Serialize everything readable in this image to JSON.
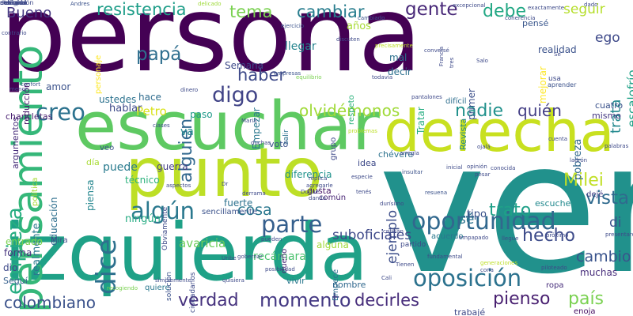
{
  "words": [
    {
      "text": "persona",
      "color": "#440154",
      "orient": "h"
    },
    {
      "text": "ver",
      "color": "#21918c",
      "orient": "h"
    },
    {
      "text": "izquierda",
      "color": "#1fa187",
      "orient": "h"
    },
    {
      "text": "escuchar",
      "color": "#5ec962",
      "orient": "h"
    },
    {
      "text": "punto",
      "color": "#bddf26",
      "orient": "h"
    },
    {
      "text": "derecha",
      "color": "#c8e020",
      "orient": "h"
    },
    {
      "text": "pensamiento",
      "color": "#35b779",
      "orient": "v"
    },
    {
      "text": "oportunidad",
      "color": "#31688e",
      "orient": "h"
    },
    {
      "text": "oposición",
      "color": "#2c728e",
      "orient": "h"
    },
    {
      "text": "momento",
      "color": "#443983",
      "orient": "h"
    },
    {
      "text": "algún",
      "color": "#2a788e",
      "orient": "h"
    },
    {
      "text": "parte",
      "color": "#355f8d",
      "orient": "h"
    },
    {
      "text": "creo",
      "color": "#2c728e",
      "orient": "h"
    },
    {
      "text": "digo",
      "color": "#414487",
      "orient": "h"
    },
    {
      "text": "colombiano",
      "color": "#3b528b",
      "orient": "h"
    },
    {
      "text": "verdad",
      "color": "#46327e",
      "orient": "h"
    },
    {
      "text": "decirles",
      "color": "#472d7b",
      "orient": "h"
    },
    {
      "text": "pienso",
      "color": "#481f70",
      "orient": "h"
    },
    {
      "text": "país",
      "color": "#7ad151",
      "orient": "h"
    },
    {
      "text": "dice",
      "color": "#2d708e",
      "orient": "v"
    },
    {
      "text": "empieza",
      "color": "#26ad81",
      "orient": "v"
    },
    {
      "text": "resistencia",
      "color": "#1f9e89",
      "orient": "h"
    },
    {
      "text": "tema",
      "color": "#7ad151",
      "orient": "h"
    },
    {
      "text": "cambiar",
      "color": "#287d8e",
      "orient": "h"
    },
    {
      "text": "gente",
      "color": "#482878",
      "orient": "h"
    },
    {
      "text": "debe",
      "color": "#22a884",
      "orient": "h"
    },
    {
      "text": "papá",
      "color": "#2e6e8e",
      "orient": "h"
    },
    {
      "text": "alguien",
      "color": "#31688e",
      "orient": "v"
    },
    {
      "text": "haber",
      "color": "#3e4a89",
      "orient": "h"
    },
    {
      "text": "nadie",
      "color": "#21918c",
      "orient": "h"
    },
    {
      "text": "olvidémonos",
      "color": "#a0da39",
      "orient": "h"
    },
    {
      "text": "quién",
      "color": "#433e85",
      "orient": "h"
    },
    {
      "text": "vista",
      "color": "#306a8e",
      "orient": "h"
    },
    {
      "text": "Milei",
      "color": "#c0df25",
      "orient": "h"
    },
    {
      "text": "trato",
      "color": "#1fa088",
      "orient": "h"
    },
    {
      "text": "hecho",
      "color": "#3e4c8a",
      "orient": "h"
    },
    {
      "text": "cambio",
      "color": "#3a548c",
      "orient": "h"
    },
    {
      "text": "cosa",
      "color": "#2a778e",
      "orient": "h"
    },
    {
      "text": "ejemplo",
      "color": "#3d4e8a",
      "orient": "v"
    },
    {
      "text": "Bueno",
      "color": "#453781",
      "orient": "h"
    },
    {
      "text": "seguir",
      "color": "#b5de2b",
      "orient": "h"
    },
    {
      "text": "ego",
      "color": "#3e4989",
      "orient": "h"
    },
    {
      "text": "trata",
      "color": "#23898e",
      "orient": "v"
    },
    {
      "text": "escalofrío",
      "color": "#1fa187",
      "orient": "v"
    },
    {
      "text": "Petro",
      "color": "#d8e219",
      "orient": "h"
    },
    {
      "text": "va",
      "color": "#23898e",
      "orient": "h"
    },
    {
      "text": "puede",
      "color": "#297b8e",
      "orient": "h"
    },
    {
      "text": "sé",
      "color": "#2c738e",
      "orient": "h"
    },
    {
      "text": "di",
      "color": "#3b518b",
      "orient": "h"
    },
    {
      "text": "suboficiales",
      "color": "#3e4989",
      "orient": "h"
    },
    {
      "text": "avaricia",
      "color": "#6ccd5a",
      "orient": "h"
    },
    {
      "text": "recámara",
      "color": "#4ac16d",
      "orient": "h"
    },
    {
      "text": "realmente",
      "color": "#2a788e",
      "orient": "v"
    },
    {
      "text": "educación",
      "color": "#2e6f8e",
      "orient": "v"
    },
    {
      "text": "argumentos",
      "color": "#472c7a",
      "orient": "v"
    },
    {
      "text": "reducción",
      "color": "#48186a",
      "orient": "v"
    },
    {
      "text": "personaje",
      "color": "#fde725",
      "orient": "v"
    },
    {
      "text": "Semana",
      "color": "#3e4a89",
      "orient": "h"
    },
    {
      "text": "llegar",
      "color": "#25858e",
      "orient": "h"
    },
    {
      "text": "años",
      "color": "#a8db34",
      "orient": "h"
    },
    {
      "text": "mal",
      "color": "#2c718e",
      "orient": "h"
    },
    {
      "text": "decir",
      "color": "#2d708e",
      "orient": "h"
    },
    {
      "text": "respeto",
      "color": "#2db27d",
      "orient": "v"
    },
    {
      "text": "Tratar",
      "color": "#26ad81",
      "orient": "v"
    },
    {
      "text": "Revista",
      "color": "#24868e",
      "orient": "v"
    },
    {
      "text": "primer",
      "color": "#3c508b",
      "orient": "v"
    },
    {
      "text": "mejorar",
      "color": "#fde725",
      "orient": "v"
    },
    {
      "text": "realidad",
      "color": "#3b528b",
      "orient": "h"
    },
    {
      "text": "hace",
      "color": "#2f6c8e",
      "orient": "h"
    },
    {
      "text": "ustedes",
      "color": "#2c728e",
      "orient": "h"
    },
    {
      "text": "hablar",
      "color": "#3e4a89",
      "orient": "h"
    },
    {
      "text": "paso",
      "color": "#1f9a8a",
      "orient": "h"
    },
    {
      "text": "cuatro",
      "color": "#3b528b",
      "orient": "h"
    },
    {
      "text": "mismo",
      "color": "#453882",
      "orient": "h"
    },
    {
      "text": "difícil",
      "color": "#2e6e8e",
      "orient": "h"
    },
    {
      "text": "guerra",
      "color": "#433e85",
      "orient": "h"
    },
    {
      "text": "diferencia",
      "color": "#20928c",
      "orient": "h"
    },
    {
      "text": "chévere",
      "color": "#2c728e",
      "orient": "h"
    },
    {
      "text": "idea",
      "color": "#3e4a89",
      "orient": "h"
    },
    {
      "text": "tipo",
      "color": "#3b528b",
      "orient": "h"
    },
    {
      "text": "pobreza",
      "color": "#31688e",
      "orient": "v"
    },
    {
      "text": "dejé",
      "color": "#433e85",
      "orient": "h"
    },
    {
      "text": "escuche",
      "color": "#23898e",
      "orient": "h"
    },
    {
      "text": "veo",
      "color": "#3b528b",
      "orient": "h"
    },
    {
      "text": "técnico",
      "color": "#2db27d",
      "orient": "h"
    },
    {
      "text": "gusta",
      "color": "#481769",
      "orient": "h"
    },
    {
      "text": "común",
      "color": "#482575",
      "orient": "h"
    },
    {
      "text": "Mira",
      "color": "#3f4788",
      "orient": "h"
    },
    {
      "text": "Obviamente",
      "color": "#3e4a89",
      "orient": "v"
    },
    {
      "text": "sencillamente",
      "color": "#3b528b",
      "orient": "h"
    },
    {
      "text": "fuerte",
      "color": "#2c718e",
      "orient": "h"
    },
    {
      "text": "ningún",
      "color": "#25ab82",
      "orient": "h"
    },
    {
      "text": "alguna",
      "color": "#a0da39",
      "orient": "h"
    },
    {
      "text": "acuerdo",
      "color": "#2a788e",
      "orient": "h"
    },
    {
      "text": "ropa",
      "color": "#472d7b",
      "orient": "h"
    },
    {
      "text": "muchas",
      "color": "#472d7b",
      "orient": "h"
    },
    {
      "text": "entrado",
      "color": "#7ad151",
      "orient": "h"
    },
    {
      "text": "forma",
      "color": "#46327e",
      "orient": "h"
    },
    {
      "text": "dio",
      "color": "#3e4989",
      "orient": "h"
    },
    {
      "text": "Seguí",
      "color": "#355f8d",
      "orient": "h"
    },
    {
      "text": "quiere",
      "color": "#2a788e",
      "orient": "h"
    },
    {
      "text": "solución",
      "color": "#3b528b",
      "orient": "v"
    },
    {
      "text": "ciudadanos",
      "color": "#3e4a89",
      "orient": "v"
    },
    {
      "text": "dueño",
      "color": "#482475",
      "orient": "v"
    },
    {
      "text": "Empecé",
      "color": "#2e6e8e",
      "orient": "v"
    },
    {
      "text": "nombre",
      "color": "#31688e",
      "orient": "h"
    },
    {
      "text": "vivir",
      "color": "#2a788e",
      "orient": "h"
    },
    {
      "text": "trabajé",
      "color": "#3e4989",
      "orient": "h"
    },
    {
      "text": "enoja",
      "color": "#471063",
      "orient": "h"
    },
    {
      "text": "chancletas",
      "color": "#481f70",
      "orient": "h"
    },
    {
      "text": "amor",
      "color": "#3b528b",
      "orient": "h"
    },
    {
      "text": "salir",
      "color": "#2c728e",
      "orient": "v"
    },
    {
      "text": "grupo",
      "color": "#3e4989",
      "orient": "v"
    },
    {
      "text": "votó",
      "color": "#3b528b",
      "orient": "h"
    },
    {
      "text": "día",
      "color": "#a8db34",
      "orient": "h"
    },
    {
      "text": "política",
      "color": "#a8db34",
      "orient": "v"
    },
    {
      "text": "piensa",
      "color": "#24868e",
      "orient": "v"
    },
    {
      "text": "Empezar",
      "color": "#2a788e",
      "orient": "v"
    },
    {
      "text": "pensé",
      "color": "#39568c",
      "orient": "h"
    },
    {
      "text": "usa",
      "color": "#3e4a89",
      "orient": "h"
    },
    {
      "text": "aprender",
      "color": "#3b528b",
      "orient": "h"
    },
    {
      "text": "partido",
      "color": "#3e4a89",
      "orient": "h"
    },
    {
      "text": "pantalones",
      "color": "#3e4989",
      "orient": "h"
    },
    {
      "text": "Maria",
      "color": "#3e4a89",
      "orient": "h"
    },
    {
      "text": "contrario",
      "color": "#3e4a89",
      "orient": "h"
    },
    {
      "text": "confort",
      "color": "#3b528b",
      "orient": "h"
    },
    {
      "text": "Andres",
      "color": "#3b528b",
      "orient": "h"
    },
    {
      "text": "delicado",
      "color": "#9fda3a",
      "orient": "h"
    },
    {
      "text": "excepcional",
      "color": "#3e4a89",
      "orient": "h"
    },
    {
      "text": "cambiado",
      "color": "#3b528b",
      "orient": "h"
    },
    {
      "text": "exactamente",
      "color": "#3e4a89",
      "orient": "h"
    },
    {
      "text": "dado",
      "color": "#3e4989",
      "orient": "h"
    },
    {
      "text": "coherencia",
      "color": "#3e4a89",
      "orient": "h"
    },
    {
      "text": "ejercicio",
      "color": "#3b528b",
      "orient": "h"
    },
    {
      "text": "discuten",
      "color": "#3e4a89",
      "orient": "h"
    },
    {
      "text": "precisamente",
      "color": "#bddf26",
      "orient": "h"
    },
    {
      "text": "empresas",
      "color": "#3b528b",
      "orient": "h"
    },
    {
      "text": "equilibrio",
      "color": "#7ad151",
      "orient": "h"
    },
    {
      "text": "todavía",
      "color": "#3e4a89",
      "orient": "h"
    },
    {
      "text": "dinero",
      "color": "#3e4a89",
      "orient": "h"
    },
    {
      "text": "problemas",
      "color": "#bddf26",
      "orient": "h"
    },
    {
      "text": "duchas",
      "color": "#3e4989",
      "orient": "h"
    },
    {
      "text": "especie",
      "color": "#3e4a89",
      "orient": "h"
    },
    {
      "text": "insultar",
      "color": "#3b528b",
      "orient": "h"
    },
    {
      "text": "cuenta",
      "color": "#3e4a89",
      "orient": "h"
    },
    {
      "text": "palabras",
      "color": "#3e4a89",
      "orient": "h"
    },
    {
      "text": "arregla",
      "color": "#3e4989",
      "orient": "h"
    },
    {
      "text": "réplica",
      "color": "#3e4a89",
      "orient": "h"
    },
    {
      "text": "agregarle",
      "color": "#3e4a89",
      "orient": "h"
    },
    {
      "text": "resuena",
      "color": "#3b528b",
      "orient": "h"
    },
    {
      "text": "dando",
      "color": "#3e4a89",
      "orient": "h"
    },
    {
      "text": "llegue",
      "color": "#3e4a89",
      "orient": "h"
    },
    {
      "text": "próximo",
      "color": "#3e4a89",
      "orient": "h"
    },
    {
      "text": "presentaron",
      "color": "#3e4a89",
      "orient": "h"
    },
    {
      "text": "empapado",
      "color": "#3e4989",
      "orient": "h"
    },
    {
      "text": "generaciones",
      "color": "#bddf26",
      "orient": "h"
    },
    {
      "text": "cona",
      "color": "#3e4a89",
      "orient": "h"
    },
    {
      "text": "piloteado",
      "color": "#3e4a89",
      "orient": "h"
    },
    {
      "text": "critican",
      "color": "#3e4a89",
      "orient": "h"
    },
    {
      "text": "quisiera",
      "color": "#3e4a89",
      "orient": "h"
    },
    {
      "text": "gobernar",
      "color": "#3e4a89",
      "orient": "h"
    },
    {
      "text": "posibilidad",
      "color": "#3e4a89",
      "orient": "h"
    },
    {
      "text": "simplemente",
      "color": "#3e4a89",
      "orient": "h"
    },
    {
      "text": "recogiendo",
      "color": "#7ad151",
      "orient": "h"
    },
    {
      "text": "ojalá",
      "color": "#3e4a89",
      "orient": "h"
    },
    {
      "text": "inicial",
      "color": "#3e4a89",
      "orient": "h"
    },
    {
      "text": "Uribe",
      "color": "#3e4a89",
      "orient": "h"
    },
    {
      "text": "clases",
      "color": "#3e4a89",
      "orient": "h"
    },
    {
      "text": "derrama",
      "color": "#3e4a89",
      "orient": "h"
    },
    {
      "text": "Duque",
      "color": "#3e4a89",
      "orient": "h"
    },
    {
      "text": "durísimo",
      "color": "#3e4989",
      "orient": "h"
    },
    {
      "text": "opinión",
      "color": "#3e4a89",
      "orient": "h"
    },
    {
      "text": "menor",
      "color": "#3e4a89",
      "orient": "h"
    },
    {
      "text": "Francia",
      "color": "#3e4a89",
      "orient": "v"
    },
    {
      "text": "conversé",
      "color": "#3e4a89",
      "orient": "h"
    },
    {
      "text": "Sé",
      "color": "#3e4a89",
      "orient": "h"
    },
    {
      "text": "tres",
      "color": "#3e4a89",
      "orient": "v"
    },
    {
      "text": "Cali",
      "color": "#3e4a89",
      "orient": "h"
    },
    {
      "text": "Salo",
      "color": "#3e4a89",
      "orient": "h"
    },
    {
      "text": "pesar",
      "color": "#3e4a89",
      "orient": "h"
    },
    {
      "text": "ladrón",
      "color": "#3e4a89",
      "orient": "h"
    },
    {
      "text": "Dr",
      "color": "#3e4a89",
      "orient": "h"
    },
    {
      "text": "Tienen",
      "color": "#3e4a89",
      "orient": "h"
    },
    {
      "text": "tenés",
      "color": "#3e4a89",
      "orient": "h"
    },
    {
      "text": "aspectos",
      "color": "#3e4a89",
      "orient": "h"
    },
    {
      "text": "fundamental",
      "color": "#3e4a89",
      "orient": "h"
    },
    {
      "text": "conocida",
      "color": "#3e4a89",
      "orient": "h"
    },
    {
      "text": "pueden",
      "color": "#3e4a89",
      "orient": "h"
    },
    {
      "text": "colegio",
      "color": "#3e4a89",
      "orient": "h"
    },
    {
      "text": "delicada",
      "color": "#3e4a89",
      "orient": "h"
    },
    {
      "text": "atención",
      "color": "#3e4a89",
      "orient": "h"
    },
    {
      "text": "mañana",
      "color": "#3e4a89",
      "orient": "h"
    },
    {
      "text": "nacional",
      "color": "#3e4a89",
      "orient": "h"
    },
    {
      "text": "corrupción",
      "color": "#3e4a89",
      "orient": "h"
    }
  ]
}
